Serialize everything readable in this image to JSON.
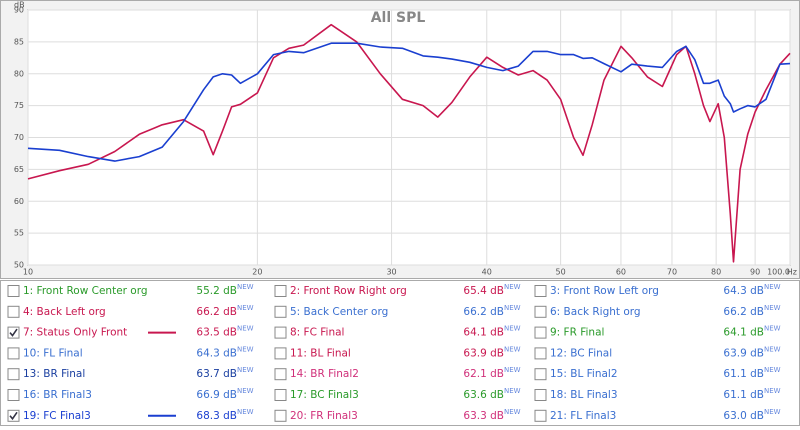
{
  "chart_data": {
    "type": "line",
    "title": "All SPL",
    "x_unit": "Hz",
    "y_unit": "dB",
    "log_x": true,
    "grid": true,
    "xlim": [
      10,
      100
    ],
    "xticks": [
      10,
      20,
      30,
      40,
      50,
      60,
      70,
      80,
      90,
      {
        "value": 100,
        "label": "100.0"
      }
    ],
    "ylim": [
      50,
      90
    ],
    "yticks": [
      50,
      55,
      60,
      65,
      70,
      75,
      80,
      85,
      90
    ],
    "x": [
      10,
      11,
      12,
      13,
      14,
      15,
      16,
      17,
      17.5,
      18,
      18.5,
      19,
      20,
      21,
      22,
      23,
      25,
      27,
      29,
      31,
      33,
      34.5,
      36,
      38,
      40,
      42,
      44,
      46,
      48,
      50,
      52,
      53.5,
      55,
      57,
      60,
      62,
      65,
      68,
      71,
      73,
      75,
      77,
      78.5,
      80.5,
      82,
      83.5,
      84.3,
      86,
      88,
      90,
      93,
      97,
      100
    ],
    "series": [
      {
        "name": "7: Status Only Front",
        "color": "#c8174f",
        "values": [
          63.5,
          64.8,
          65.8,
          67.8,
          70.5,
          72,
          72.8,
          71,
          67.3,
          71,
          74.8,
          75.2,
          77,
          82.5,
          84,
          84.5,
          87.7,
          85,
          80,
          76,
          75,
          73.2,
          75.5,
          79.5,
          82.6,
          81,
          79.8,
          80.5,
          79,
          76,
          70,
          67.2,
          72,
          79,
          84.3,
          82.5,
          79.5,
          78,
          83,
          84.3,
          80,
          75,
          72.5,
          75.3,
          70,
          58,
          50.5,
          65,
          70.5,
          74,
          77.5,
          81.5,
          83.2
        ]
      },
      {
        "name": "19: FC Final3",
        "color": "#1a3fd0",
        "values": [
          68.3,
          68,
          67,
          66.3,
          67,
          68.5,
          72.5,
          77.5,
          79.5,
          80,
          79.8,
          78.5,
          80,
          83,
          83.5,
          83.3,
          84.8,
          84.8,
          84.2,
          84,
          82.8,
          82.6,
          82.3,
          81.8,
          81,
          80.5,
          81.2,
          83.5,
          83.5,
          83,
          83,
          82.4,
          82.5,
          81.6,
          80.3,
          81.5,
          81.2,
          81,
          83.5,
          84.3,
          82.2,
          78.5,
          78.5,
          79,
          76.5,
          75.3,
          74,
          74.5,
          75,
          74.8,
          76,
          81.5,
          81.6
        ]
      }
    ]
  },
  "legend": {
    "badge": "NEW",
    "entries": [
      {
        "name": "1: Front Row Center org",
        "level": "55.2 dB",
        "color": "#2a9a2a",
        "checked": false
      },
      {
        "name": "2: Front Row Right org",
        "level": "65.4 dB",
        "color": "#c8174f",
        "checked": false
      },
      {
        "name": "3: Front Row Left org",
        "level": "64.3 dB",
        "color": "#3a6fd0",
        "checked": false
      },
      {
        "name": "4: Back Left org",
        "level": "66.2 dB",
        "color": "#c8174f",
        "checked": false
      },
      {
        "name": "5: Back Center org",
        "level": "66.2 dB",
        "color": "#3a6fd0",
        "checked": false
      },
      {
        "name": "6: Back Right org",
        "level": "66.2 dB",
        "color": "#3a6fd0",
        "checked": false
      },
      {
        "name": "7: Status Only Front",
        "level": "63.5 dB",
        "color": "#c8174f",
        "checked": true
      },
      {
        "name": "8: FC Final",
        "level": "64.1 dB",
        "color": "#c8174f",
        "checked": false
      },
      {
        "name": "9: FR Final",
        "level": "64.1 dB",
        "color": "#2a9a2a",
        "checked": false
      },
      {
        "name": "10: FL Final",
        "level": "64.3 dB",
        "color": "#3a6fd0",
        "checked": false
      },
      {
        "name": "11: BL Final",
        "level": "63.9 dB",
        "color": "#c8174f",
        "checked": false
      },
      {
        "name": "12: BC Final",
        "level": "63.9 dB",
        "color": "#3a6fd0",
        "checked": false
      },
      {
        "name": "13: BR Final",
        "level": "63.7 dB",
        "color": "#1a3fa0",
        "checked": false
      },
      {
        "name": "14: BR Final2",
        "level": "62.1 dB",
        "color": "#d0307a",
        "checked": false
      },
      {
        "name": "15: BL Final2",
        "level": "61.1 dB",
        "color": "#3a6fd0",
        "checked": false
      },
      {
        "name": "16: BR Final3",
        "level": "66.9 dB",
        "color": "#3a6fd0",
        "checked": false
      },
      {
        "name": "17: BC Final3",
        "level": "63.6 dB",
        "color": "#2a9a2a",
        "checked": false
      },
      {
        "name": "18: BL Final3",
        "level": "61.1 dB",
        "color": "#3a6fd0",
        "checked": false
      },
      {
        "name": "19: FC Final3",
        "level": "68.3 dB",
        "color": "#1a3fd0",
        "checked": true
      },
      {
        "name": "20: FR Final3",
        "level": "63.3 dB",
        "color": "#d0307a",
        "checked": false
      },
      {
        "name": "21: FL Final3",
        "level": "63.0 dB",
        "color": "#3a6fd0",
        "checked": false
      }
    ]
  }
}
